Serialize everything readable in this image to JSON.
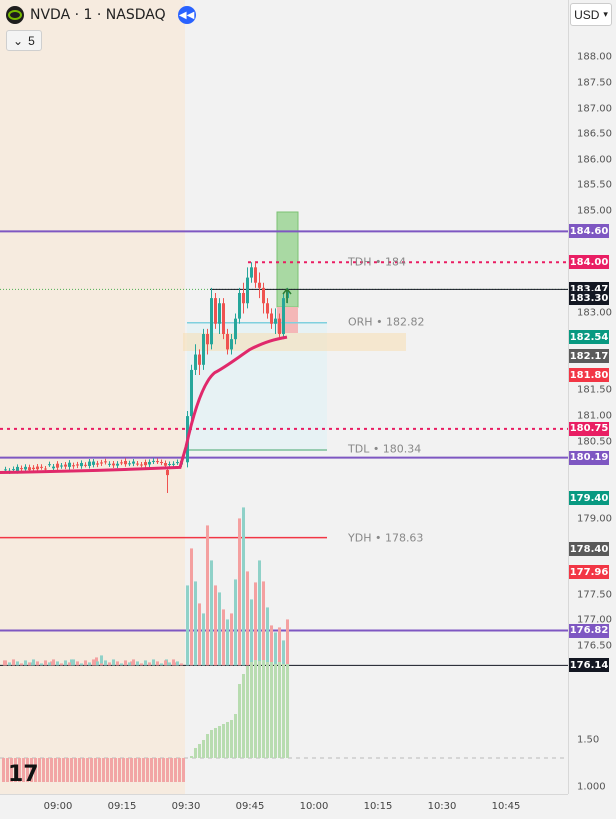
{
  "header": {
    "symbol_title": "NVDA · 1 · NASDAQ",
    "interval_value": "5",
    "currency": "USD"
  },
  "price_axis": {
    "ticks": [
      "188.00",
      "187.50",
      "187.00",
      "186.50",
      "186.00",
      "185.50",
      "185.00",
      "183.00",
      "181.50",
      "181.00",
      "180.50",
      "179.00",
      "177.50",
      "177.00",
      "176.50",
      "1.50",
      "1.000"
    ],
    "badges": [
      {
        "name": "badge-184-60",
        "text": "184.60",
        "color": "#7e57c2",
        "price": 184.6
      },
      {
        "name": "badge-184-00",
        "text": "184.00",
        "color": "#e91e63",
        "price": 184.0
      },
      {
        "name": "badge-183-47",
        "text": "183.47",
        "color": "#131722",
        "price": 183.47
      },
      {
        "name": "badge-183-30",
        "text": "183.30",
        "color": "#131722",
        "price": 183.3
      },
      {
        "name": "badge-182-54",
        "text": "182.54",
        "color": "#089981",
        "price": 182.54
      },
      {
        "name": "badge-182-17",
        "text": "182.17",
        "color": "#5a5a5a",
        "price": 182.17
      },
      {
        "name": "badge-181-80",
        "text": "181.80",
        "color": "#f23645",
        "price": 181.8
      },
      {
        "name": "badge-180-75",
        "text": "180.75",
        "color": "#e91e63",
        "price": 180.75
      },
      {
        "name": "badge-180-19",
        "text": "180.19",
        "color": "#7e57c2",
        "price": 180.19
      },
      {
        "name": "badge-179-40",
        "text": "179.40",
        "color": "#089981",
        "price": 179.4
      },
      {
        "name": "badge-178-40",
        "text": "178.40",
        "color": "#5a5a5a",
        "price": 178.4
      },
      {
        "name": "badge-177-96",
        "text": "177.96",
        "color": "#f23645",
        "price": 177.96
      },
      {
        "name": "badge-176-82",
        "text": "176.82",
        "color": "#7e57c2",
        "price": 176.82
      },
      {
        "name": "badge-176-14",
        "text": "176.14",
        "color": "#131722",
        "price": 176.14
      }
    ]
  },
  "time_axis": {
    "labels": [
      "09:00",
      "09:15",
      "09:30",
      "09:45",
      "10:00",
      "10:15",
      "10:30",
      "10:45"
    ]
  },
  "levels": {
    "tdh": "TDH • 184",
    "orh": "ORH • 182.82",
    "tdl": "TDL • 180.34",
    "ydh": "YDH • 178.63"
  },
  "colors": {
    "purple": "#7e57c2",
    "magenta": "#e91e63",
    "red": "#f23645",
    "green": "#089981",
    "teal": "#5dbcb6",
    "premarket": "#f6ebdf",
    "candle_up": "#26a69a",
    "candle_down": "#ef5350"
  },
  "icons": {
    "logo": "nvidia-logo",
    "replay": "rewind-icon",
    "interval_caret": "chevron-down-icon",
    "currency_caret": "chevron-down-icon",
    "brand": "tradingview-logo"
  },
  "brand_mark": "17"
}
